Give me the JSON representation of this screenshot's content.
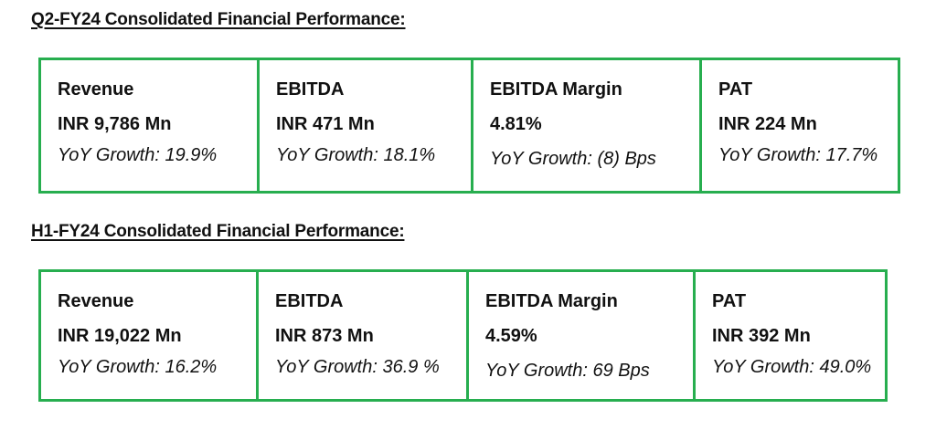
{
  "sections": [
    {
      "heading": "Q2-FY24 Consolidated Financial Performance:",
      "metrics": [
        {
          "label": "Revenue",
          "value": "INR 9,786 Mn",
          "growth": "YoY Growth: 19.9%"
        },
        {
          "label": "EBITDA",
          "value": "INR 471 Mn",
          "growth": "YoY Growth: 18.1%"
        },
        {
          "label": "EBITDA Margin",
          "value": "4.81%",
          "growth": "YoY Growth: (8) Bps"
        },
        {
          "label": "PAT",
          "value": "INR 224 Mn",
          "growth": "YoY Growth: 17.7%"
        }
      ]
    },
    {
      "heading": "H1-FY24 Consolidated Financial Performance:",
      "metrics": [
        {
          "label": "Revenue",
          "value": "INR 19,022 Mn",
          "growth": "YoY Growth: 16.2%"
        },
        {
          "label": "EBITDA",
          "value": "INR 873 Mn",
          "growth": "YoY Growth: 36.9 %"
        },
        {
          "label": "EBITDA Margin",
          "value": "4.59%",
          "growth": "YoY Growth: 69 Bps"
        },
        {
          "label": "PAT",
          "value": "INR 392 Mn",
          "growth": "YoY Growth: 49.0%"
        }
      ]
    }
  ],
  "colors": {
    "border": "#27ae4f",
    "text": "#111111"
  }
}
